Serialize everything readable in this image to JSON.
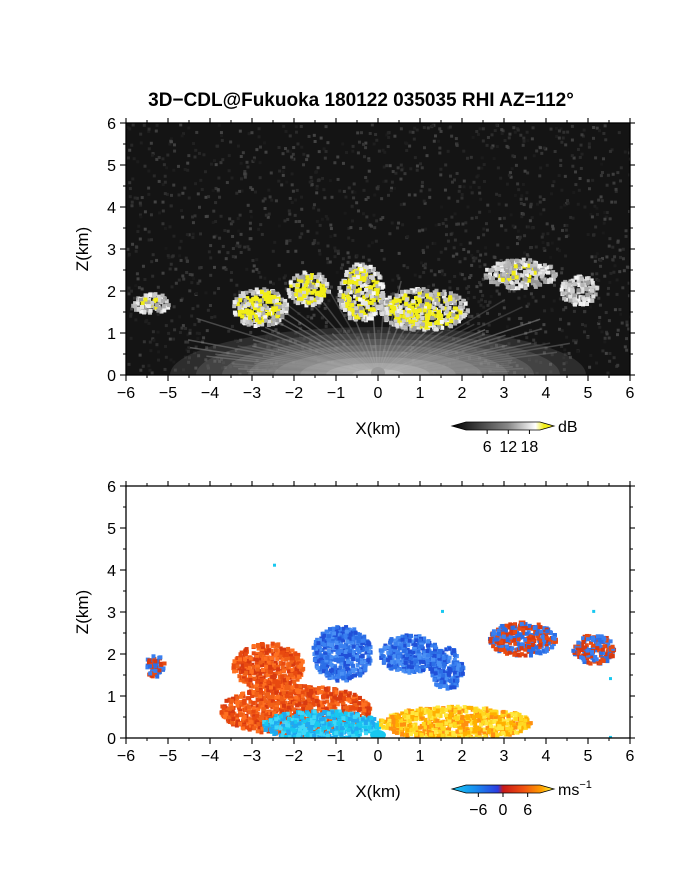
{
  "figure": {
    "title": "3D−CDL@Fukuoka 180122 035035 RHI AZ=112°"
  },
  "chart_data": [
    {
      "type": "heatmap",
      "name": "reflectivity",
      "xlabel": "X(km)",
      "ylabel": "Z(km)",
      "xlim": [
        -6,
        6
      ],
      "ylim": [
        0,
        6
      ],
      "xticks": [
        "−6",
        "−5",
        "−4",
        "−3",
        "−2",
        "−1",
        "0",
        "1",
        "2",
        "3",
        "4",
        "5",
        "6"
      ],
      "yticks": [
        "0",
        "1",
        "2",
        "3",
        "4",
        "5",
        "6"
      ],
      "colorbar": {
        "unit": "dB",
        "ticks": [
          "6",
          "12",
          "18"
        ],
        "tick_values": [
          6,
          12,
          18
        ],
        "range": [
          0,
          21
        ]
      },
      "colors": {
        "background": "#141414",
        "high": "#f2ee18"
      },
      "cloud_regions": [
        {
          "x": [
            -5.9,
            -5.0
          ],
          "z": [
            1.5,
            2.0
          ],
          "level": "moderate"
        },
        {
          "x": [
            -3.5,
            -2.2
          ],
          "z": [
            1.2,
            2.1
          ],
          "level": "high"
        },
        {
          "x": [
            -2.2,
            -1.2
          ],
          "z": [
            1.7,
            2.5
          ],
          "level": "high"
        },
        {
          "x": [
            -1.0,
            0.1
          ],
          "z": [
            1.3,
            2.7
          ],
          "level": "high"
        },
        {
          "x": [
            0.0,
            2.1
          ],
          "z": [
            1.1,
            2.1
          ],
          "level": "high"
        },
        {
          "x": [
            2.5,
            4.2
          ],
          "z": [
            2.1,
            2.8
          ],
          "level": "moderate"
        },
        {
          "x": [
            4.3,
            5.2
          ],
          "z": [
            1.7,
            2.4
          ],
          "level": "low"
        }
      ]
    },
    {
      "type": "heatmap",
      "name": "doppler-velocity",
      "xlabel": "X(km)",
      "ylabel": "Z(km)",
      "xlim": [
        -6,
        6
      ],
      "ylim": [
        0,
        6
      ],
      "xticks": [
        "−6",
        "−5",
        "−4",
        "−3",
        "−2",
        "−1",
        "0",
        "1",
        "2",
        "3",
        "4",
        "5",
        "6"
      ],
      "yticks": [
        "0",
        "1",
        "2",
        "3",
        "4",
        "5",
        "6"
      ],
      "colorbar": {
        "unit": "ms",
        "unit_exponent": "−1",
        "ticks": [
          "−6",
          "0",
          "6"
        ],
        "tick_values": [
          -6,
          0,
          6
        ],
        "range": [
          -9,
          9
        ]
      },
      "colors": {
        "negative": "#2c6fe6",
        "positive": "#e84a10",
        "near_zero_neg": "#18c8f0",
        "near_zero_pos": "#ffd820"
      },
      "velocity_regions": [
        {
          "x": [
            -5.6,
            -5.1
          ],
          "z": [
            1.5,
            2.0
          ],
          "v": "mixed"
        },
        {
          "x": [
            -3.5,
            -1.8
          ],
          "z": [
            1.2,
            2.3
          ],
          "v": "positive"
        },
        {
          "x": [
            -1.6,
            -0.2
          ],
          "z": [
            1.4,
            2.7
          ],
          "v": "negative"
        },
        {
          "x": [
            0.0,
            1.4
          ],
          "z": [
            1.6,
            2.5
          ],
          "v": "negative"
        },
        {
          "x": [
            1.2,
            2.0
          ],
          "z": [
            1.2,
            2.2
          ],
          "v": "negative"
        },
        {
          "x": [
            -3.8,
            -0.2
          ],
          "z": [
            0.1,
            1.3
          ],
          "v": "positive"
        },
        {
          "x": [
            -2.8,
            0.0
          ],
          "z": [
            0.0,
            0.7
          ],
          "v": "near-zero-negative"
        },
        {
          "x": [
            0.0,
            3.6
          ],
          "z": [
            0.0,
            0.8
          ],
          "v": "near-zero-positive"
        },
        {
          "x": [
            2.6,
            4.2
          ],
          "z": [
            2.0,
            2.8
          ],
          "v": "mixed"
        },
        {
          "x": [
            4.6,
            5.6
          ],
          "z": [
            1.8,
            2.5
          ],
          "v": "mixed"
        }
      ]
    }
  ]
}
